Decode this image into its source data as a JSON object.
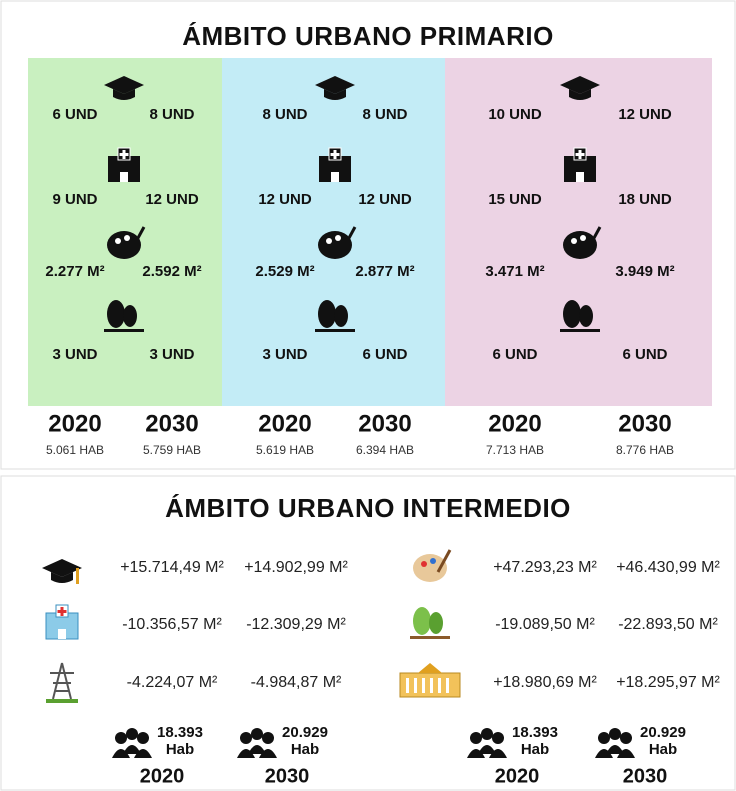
{
  "primary": {
    "title": "ÁMBITO URBANO PRIMARIO",
    "columns": [
      {
        "rows": [
          [
            "6 UND",
            "8 UND"
          ],
          [
            "9 UND",
            "12 UND"
          ],
          [
            "2.277 M²",
            "2.592 M²"
          ],
          [
            "3 UND",
            "3 UND"
          ]
        ],
        "years": [
          "2020",
          "2030"
        ],
        "population": [
          "5.061 HAB",
          "5.759 HAB"
        ]
      },
      {
        "rows": [
          [
            "8 UND",
            "8 UND"
          ],
          [
            "12 UND",
            "12 UND"
          ],
          [
            "2.529 M²",
            "2.877 M²"
          ],
          [
            "3 UND",
            "6 UND"
          ]
        ],
        "years": [
          "2020",
          "2030"
        ],
        "population": [
          "5.619 HAB",
          "6.394 HAB"
        ]
      },
      {
        "rows": [
          [
            "10 UND",
            "12 UND"
          ],
          [
            "15 UND",
            "18 UND"
          ],
          [
            "3.471 M²",
            "3.949 M²"
          ],
          [
            "6 UND",
            "6 UND"
          ]
        ],
        "years": [
          "2020",
          "2030"
        ],
        "population": [
          "7.713 HAB",
          "8.776 HAB"
        ]
      }
    ]
  },
  "intermediate": {
    "title": "ÁMBITO URBANO INTERMEDIO",
    "left": [
      [
        "+15.714,49 M²",
        "+14.902,99 M²"
      ],
      [
        "-10.356,57 M²",
        "-12.309,29 M²"
      ],
      [
        "-4.224,07 M²",
        "-4.984,87 M²"
      ]
    ],
    "right": [
      [
        "+47.293,23 M²",
        "+46.430,99 M²"
      ],
      [
        "-19.089,50 M²",
        "-22.893,50 M²"
      ],
      [
        "+18.980,69 M²",
        "+18.295,97 M²"
      ]
    ],
    "population": [
      {
        "count": "18.393",
        "unit": "Hab",
        "year": "2020"
      },
      {
        "count": "20.929",
        "unit": "Hab",
        "year": "2030"
      },
      {
        "count": "18.393",
        "unit": "Hab",
        "year": "2020"
      },
      {
        "count": "20.929",
        "unit": "Hab",
        "year": "2030"
      }
    ]
  }
}
